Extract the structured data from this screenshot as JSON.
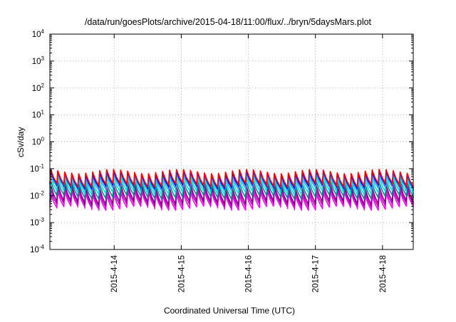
{
  "chart_data": {
    "type": "line",
    "title": "/data/run/goesPlots/archive/2015-04-18/11:00/flux/../bryn/5daysMars.plot",
    "xlabel": "Coordinated Universal Time (UTC)",
    "ylabel": "cSv/day",
    "yscale": "log",
    "ylim": [
      0.0001,
      10000
    ],
    "y_ticks": [
      {
        "base": "10",
        "exp": "-4",
        "value": 0.0001
      },
      {
        "base": "10",
        "exp": "-3",
        "value": 0.001
      },
      {
        "base": "10",
        "exp": "-2",
        "value": 0.01
      },
      {
        "base": "10",
        "exp": "-1",
        "value": 0.1
      },
      {
        "base": "10",
        "exp": "0",
        "value": 1
      },
      {
        "base": "10",
        "exp": "1",
        "value": 10
      },
      {
        "base": "10",
        "exp": "2",
        "value": 100
      },
      {
        "base": "10",
        "exp": "3",
        "value": 1000
      },
      {
        "base": "10",
        "exp": "4",
        "value": 10000
      }
    ],
    "xlim": [
      "2015-04-13 01:00",
      "2015-04-18 11:00"
    ],
    "x_ticks": [
      "2015-4-14",
      "2015-4-15",
      "2015-4-16",
      "2015-4-17",
      "2015-4-18"
    ],
    "x_tick_values": [
      "2015-04-14 00:00",
      "2015-04-15 00:00",
      "2015-04-16 00:00",
      "2015-04-17 00:00",
      "2015-04-18 00:00"
    ],
    "grid": true,
    "sawtooth_period_hours": 2.5,
    "series": [
      {
        "color": "#ff00ff",
        "peak": 0.012,
        "trough": 0.0035
      },
      {
        "color": "#c000c0",
        "peak": 0.016,
        "trough": 0.0045
      },
      {
        "color": "#800080",
        "peak": 0.022,
        "trough": 0.0055
      },
      {
        "color": "#008b8b",
        "peak": 0.03,
        "trough": 0.009
      },
      {
        "color": "#00e0e0",
        "peak": 0.042,
        "trough": 0.013
      },
      {
        "color": "#3399ff",
        "peak": 0.055,
        "trough": 0.018
      },
      {
        "color": "#0000ff",
        "peak": 0.07,
        "trough": 0.022
      },
      {
        "color": "#ff0000",
        "peak": 0.08,
        "trough": 0.025
      }
    ]
  }
}
